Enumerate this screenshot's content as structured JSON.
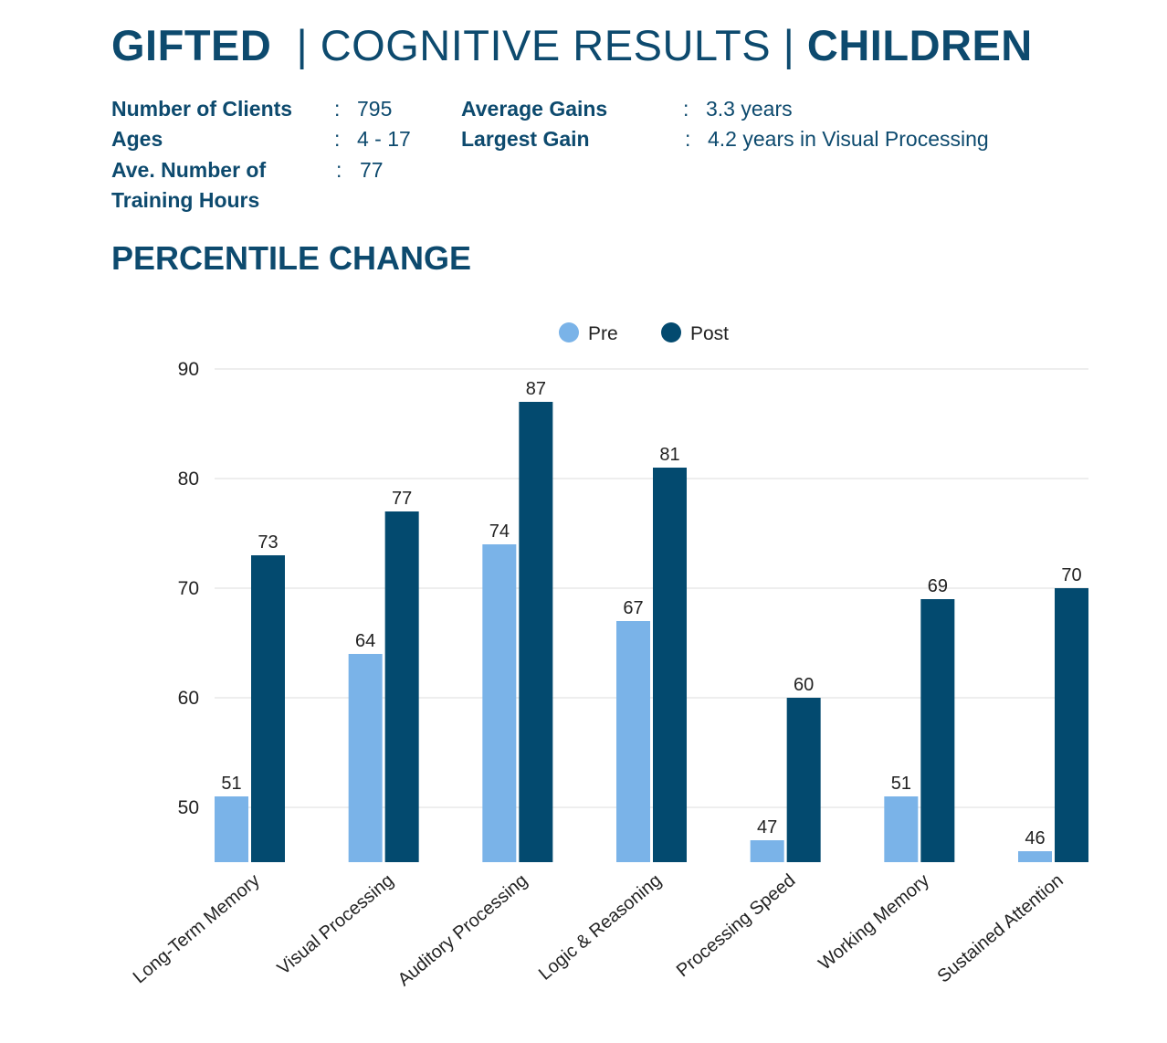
{
  "header": {
    "title_part1": "GIFTED",
    "title_part2": "| COGNITIVE RESULTS |",
    "title_part3": "CHILDREN"
  },
  "stats": [
    {
      "label": "Number of Clients",
      "value": "795"
    },
    {
      "label": "Ages",
      "value": "4 - 17"
    },
    {
      "label": "Ave. Number of",
      "value": "77"
    },
    {
      "label": "Training Hours",
      "value": ""
    },
    {
      "label": "Average Gains",
      "value": "3.3 years"
    },
    {
      "label": "Largest Gain",
      "value": "4.2 years in Visual Processing"
    }
  ],
  "separator": ":",
  "section_title": "PERCENTILE CHANGE",
  "colors": {
    "text": "#0d4a6e",
    "pre": "#7ab3e8",
    "post": "#034a6f",
    "grid": "#dddddd"
  },
  "chart_data": {
    "type": "bar",
    "categories": [
      "Long-Term Memory",
      "Visual Processing",
      "Auditory Processing",
      "Logic & Reasoning",
      "Processing Speed",
      "Working Memory",
      "Sustained Attention"
    ],
    "series": [
      {
        "name": "Pre",
        "values": [
          51,
          64,
          74,
          67,
          47,
          51,
          46
        ]
      },
      {
        "name": "Post",
        "values": [
          73,
          77,
          87,
          81,
          60,
          69,
          70
        ]
      }
    ],
    "yticks": [
      50,
      60,
      70,
      80,
      90
    ],
    "ylim": [
      45,
      90
    ],
    "grid": true,
    "legend": "top-center",
    "data_labels": true
  }
}
